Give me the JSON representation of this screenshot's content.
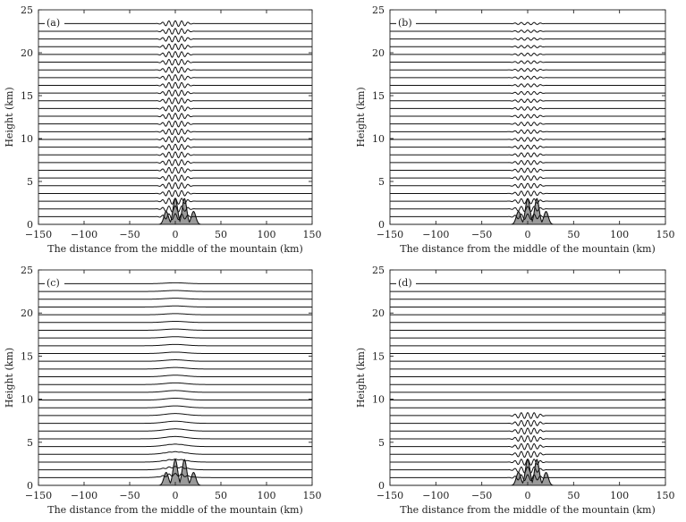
{
  "figure": {
    "xlabel": "The distance from the middle of the mountain (km)",
    "ylabel": "Height (km)"
  },
  "chart_data": [
    {
      "type": "line",
      "panel": "(a)",
      "title": "",
      "xlabel": "The distance from the middle of the mountain (km)",
      "ylabel": "Height (km)",
      "xlim": [
        -150,
        150
      ],
      "ylim": [
        0,
        25
      ],
      "xticks": [
        -150,
        -100,
        -50,
        0,
        50,
        100,
        150
      ],
      "yticks": [
        0,
        5,
        10,
        15,
        20,
        25
      ],
      "grid": false,
      "streamline_levels_km": [
        0,
        0.9,
        1.8,
        2.7,
        3.6,
        4.5,
        5.4,
        6.3,
        7.2,
        8.1,
        9.0,
        9.9,
        10.8,
        11.7,
        12.6,
        13.5,
        14.4,
        15.3,
        16.2,
        17.1,
        18.0,
        18.9,
        19.8,
        20.7,
        21.6,
        22.5,
        23.4
      ],
      "terrain": {
        "peaks_km": [
          -10,
          0,
          10,
          20
        ],
        "peak_heights_km": [
          1.5,
          3.0,
          3.0,
          1.5
        ],
        "half_width_km": 3.5
      },
      "wave": {
        "amplitude_km": 0.35,
        "wavelength_km": 7,
        "envelope_halfwidth_km": 15,
        "decay_height_km": 400
      }
    },
    {
      "type": "line",
      "panel": "(b)",
      "title": "",
      "xlabel": "The distance from the middle of the mountain (km)",
      "ylabel": "Height (km)",
      "xlim": [
        -150,
        150
      ],
      "ylim": [
        0,
        25
      ],
      "xticks": [
        -150,
        -100,
        -50,
        0,
        50,
        100,
        150
      ],
      "yticks": [
        0,
        5,
        10,
        15,
        20,
        25
      ],
      "grid": false,
      "streamline_levels_km": [
        0,
        0.9,
        1.8,
        2.7,
        3.6,
        4.5,
        5.4,
        6.3,
        7.2,
        8.1,
        9.0,
        9.9,
        10.8,
        11.7,
        12.6,
        13.5,
        14.4,
        15.3,
        16.2,
        17.1,
        18.0,
        18.9,
        19.8,
        20.7,
        21.6,
        22.5,
        23.4
      ],
      "terrain": {
        "peaks_km": [
          -10,
          0,
          10,
          20
        ],
        "peak_heights_km": [
          1.5,
          3.0,
          3.0,
          1.5
        ],
        "half_width_km": 3.5
      },
      "wave": {
        "amplitude_km": 0.33,
        "wavelength_km": 7,
        "envelope_halfwidth_km": 15,
        "decay_height_km": 26
      }
    },
    {
      "type": "line",
      "panel": "(c)",
      "title": "",
      "xlabel": "The distance from the middle of the mountain (km)",
      "ylabel": "Height (km)",
      "xlim": [
        -150,
        150
      ],
      "ylim": [
        0,
        25
      ],
      "xticks": [
        -150,
        -100,
        -50,
        0,
        50,
        100,
        150
      ],
      "yticks": [
        0,
        5,
        10,
        15,
        20,
        25
      ],
      "grid": false,
      "streamline_levels_km": [
        0,
        0.9,
        1.8,
        2.7,
        3.6,
        4.5,
        5.4,
        6.3,
        7.2,
        8.1,
        9.0,
        9.9,
        10.8,
        11.7,
        12.6,
        13.5,
        14.4,
        15.3,
        16.2,
        17.1,
        18.0,
        18.9,
        19.8,
        20.7,
        21.6,
        22.5,
        23.4
      ],
      "terrain": {
        "peaks_km": [
          -10,
          0,
          10,
          20
        ],
        "peak_heights_km": [
          1.5,
          3.0,
          3.0,
          1.5
        ],
        "half_width_km": 3.5
      },
      "wave": {
        "amplitude_km": 0.3,
        "wavelength_km": 7,
        "envelope_halfwidth_km": 15,
        "decay_height_km": 1.4,
        "broad_amplitude_km": 0.35,
        "broad_halfwidth_km": 16,
        "broad_decay_height_km": 20
      }
    },
    {
      "type": "line",
      "panel": "(d)",
      "title": "",
      "xlabel": "The distance from the middle of the mountain (km)",
      "ylabel": "Height (km)",
      "xlim": [
        -150,
        150
      ],
      "ylim": [
        0,
        25
      ],
      "xticks": [
        -150,
        -100,
        -50,
        0,
        50,
        100,
        150
      ],
      "yticks": [
        0,
        5,
        10,
        15,
        20,
        25
      ],
      "grid": false,
      "streamline_levels_km": [
        0,
        0.9,
        1.8,
        2.7,
        3.6,
        4.5,
        5.4,
        6.3,
        7.2,
        8.1,
        9.0,
        9.9,
        10.8,
        11.7,
        12.6,
        13.5,
        14.4,
        15.3,
        16.2,
        17.1,
        18.0,
        18.9,
        19.8,
        20.7,
        21.6,
        22.5,
        23.4
      ],
      "terrain": {
        "peaks_km": [
          -10,
          0,
          10,
          20
        ],
        "peak_heights_km": [
          1.5,
          3.0,
          3.0,
          1.5
        ],
        "half_width_km": 3.5
      },
      "wave": {
        "amplitude_km": 0.35,
        "wavelength_km": 7,
        "envelope_halfwidth_km": 15,
        "decay_height_km": 400,
        "cutoff_height_km": 8.2
      }
    }
  ]
}
